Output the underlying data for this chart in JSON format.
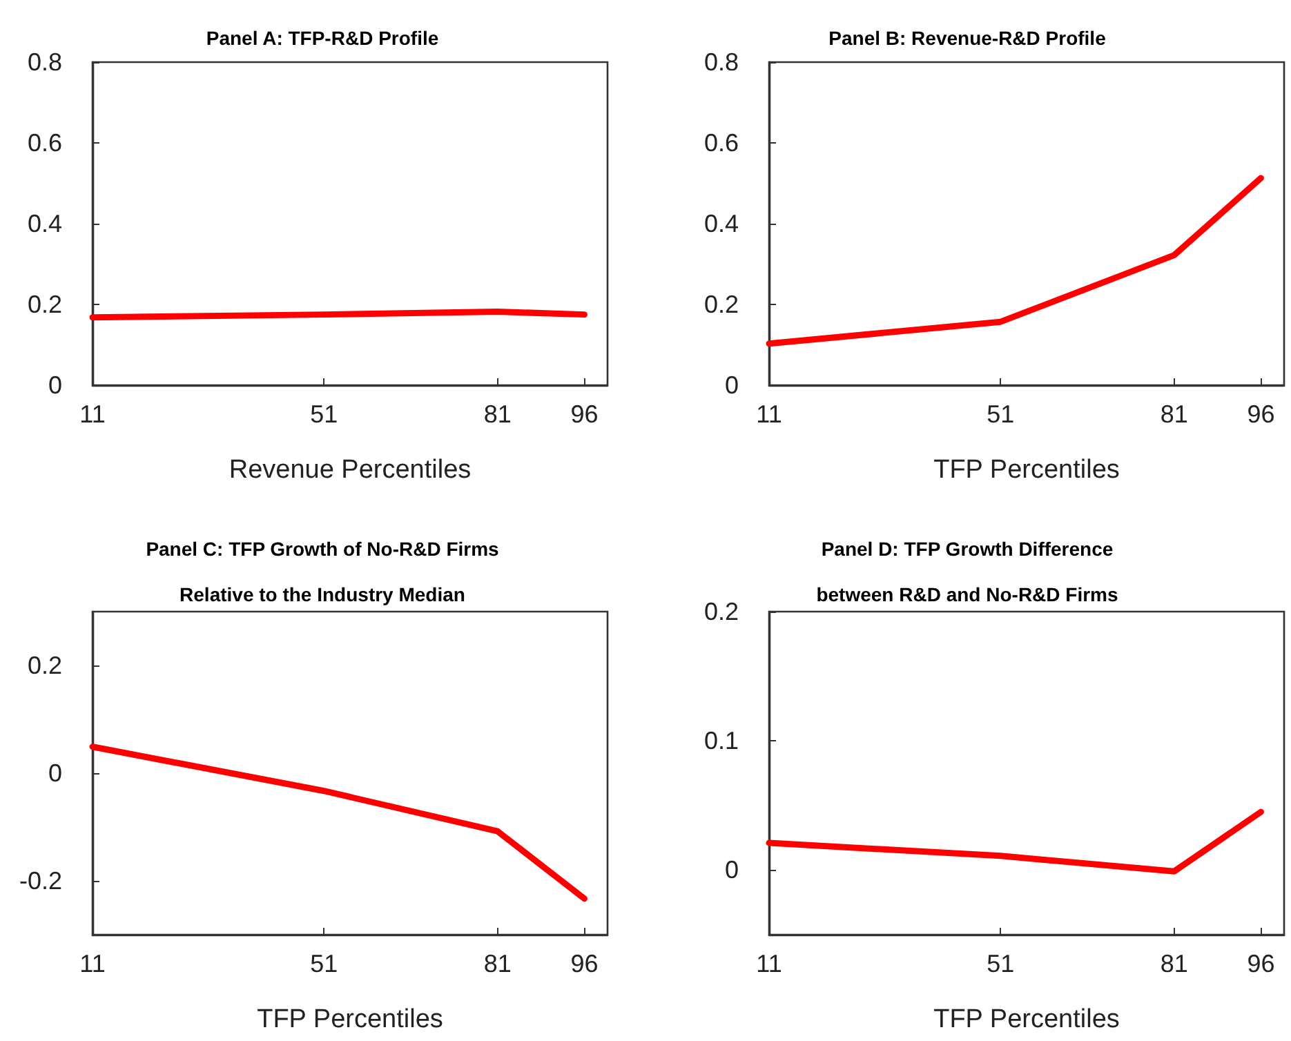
{
  "chart_data": [
    {
      "type": "line",
      "title": "Panel A: TFP-R&D Profile",
      "xlabel": "Revenue Percentiles",
      "x": [
        11,
        51,
        81,
        96
      ],
      "series": [
        {
          "color": "#ff0000",
          "values": [
            0.168,
            0.175,
            0.182,
            0.175
          ]
        }
      ],
      "xlim": [
        11,
        100
      ],
      "xticks": [
        11,
        51,
        81,
        96
      ],
      "ylim": [
        0,
        0.8
      ],
      "yticks": [
        0,
        0.2,
        0.4,
        0.6,
        0.8
      ],
      "grid": false,
      "marker": "none",
      "line_style": "solid"
    },
    {
      "type": "line",
      "title": "Panel B: Revenue-R&D Profile",
      "xlabel": "TFP Percentiles",
      "x": [
        11,
        51,
        81,
        96
      ],
      "series": [
        {
          "color": "#ff0000",
          "values": [
            0.103,
            0.157,
            0.322,
            0.513
          ]
        }
      ],
      "xlim": [
        11,
        100
      ],
      "xticks": [
        11,
        51,
        81,
        96
      ],
      "ylim": [
        0,
        0.8
      ],
      "yticks": [
        0,
        0.2,
        0.4,
        0.6,
        0.8
      ],
      "grid": false,
      "marker": "none",
      "line_style": "solid"
    },
    {
      "type": "line",
      "title": "Panel C: TFP Growth of No-R&D Firms\nRelative to the Industry Median",
      "xlabel": "TFP Percentiles",
      "x": [
        11,
        51,
        81,
        96
      ],
      "series": [
        {
          "color": "#ff0000",
          "values": [
            0.049,
            -0.033,
            -0.108,
            -0.233
          ]
        }
      ],
      "xlim": [
        11,
        100
      ],
      "xticks": [
        11,
        51,
        81,
        96
      ],
      "ylim": [
        -0.3,
        0.3
      ],
      "yticks": [
        -0.2,
        0,
        0.2
      ],
      "grid": false,
      "marker": "none",
      "line_style": "solid"
    },
    {
      "type": "line",
      "title": "Panel D: TFP Growth Difference\nbetween R&D and No-R&D Firms",
      "xlabel": "TFP Percentiles",
      "x": [
        11,
        51,
        81,
        96
      ],
      "series": [
        {
          "color": "#ff0000",
          "values": [
            0.021,
            0.011,
            -0.001,
            0.045
          ]
        }
      ],
      "xlim": [
        11,
        100
      ],
      "xticks": [
        11,
        51,
        81,
        96
      ],
      "ylim": [
        -0.05,
        0.2
      ],
      "yticks": [
        0,
        0.1,
        0.2
      ],
      "grid": false,
      "marker": "none",
      "line_style": "solid"
    }
  ]
}
